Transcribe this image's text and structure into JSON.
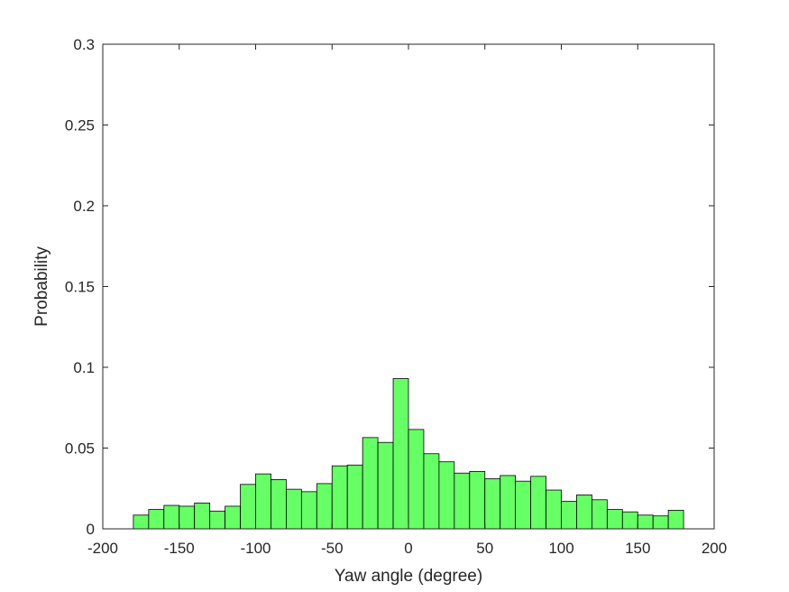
{
  "chart_data": {
    "type": "bar",
    "title": "",
    "xlabel": "Yaw angle (degree)",
    "ylabel": "Probability",
    "xlim": [
      -200,
      200
    ],
    "ylim": [
      0,
      0.3
    ],
    "xticks": [
      -200,
      -150,
      -100,
      -50,
      0,
      50,
      100,
      150,
      200
    ],
    "yticks": [
      0,
      0.05,
      0.1,
      0.15,
      0.2,
      0.25,
      0.3
    ],
    "xtick_labels": [
      "-200",
      "-150",
      "-100",
      "-50",
      "0",
      "50",
      "100",
      "150",
      "200"
    ],
    "ytick_labels": [
      "0",
      "0.05",
      "0.1",
      "0.15",
      "0.2",
      "0.25",
      "0.3"
    ],
    "bin_edges": [
      -180,
      -170,
      -160,
      -150,
      -140,
      -130,
      -120,
      -110,
      -100,
      -90,
      -80,
      -70,
      -60,
      -50,
      -40,
      -30,
      -20,
      -10,
      0,
      10,
      20,
      30,
      40,
      50,
      60,
      70,
      80,
      90,
      100,
      110,
      120,
      130,
      140,
      150,
      160,
      170,
      180
    ],
    "values": [
      0.0085,
      0.012,
      0.0145,
      0.014,
      0.016,
      0.011,
      0.014,
      0.0275,
      0.034,
      0.0305,
      0.0245,
      0.023,
      0.028,
      0.039,
      0.0395,
      0.0565,
      0.0535,
      0.093,
      0.0615,
      0.0465,
      0.0415,
      0.0345,
      0.0355,
      0.031,
      0.033,
      0.0295,
      0.0325,
      0.024,
      0.017,
      0.021,
      0.018,
      0.012,
      0.0105,
      0.0085,
      0.008,
      0.0115
    ],
    "bar_color": "#66ff66",
    "edge_color": "#000000",
    "grid": false,
    "box": true
  }
}
